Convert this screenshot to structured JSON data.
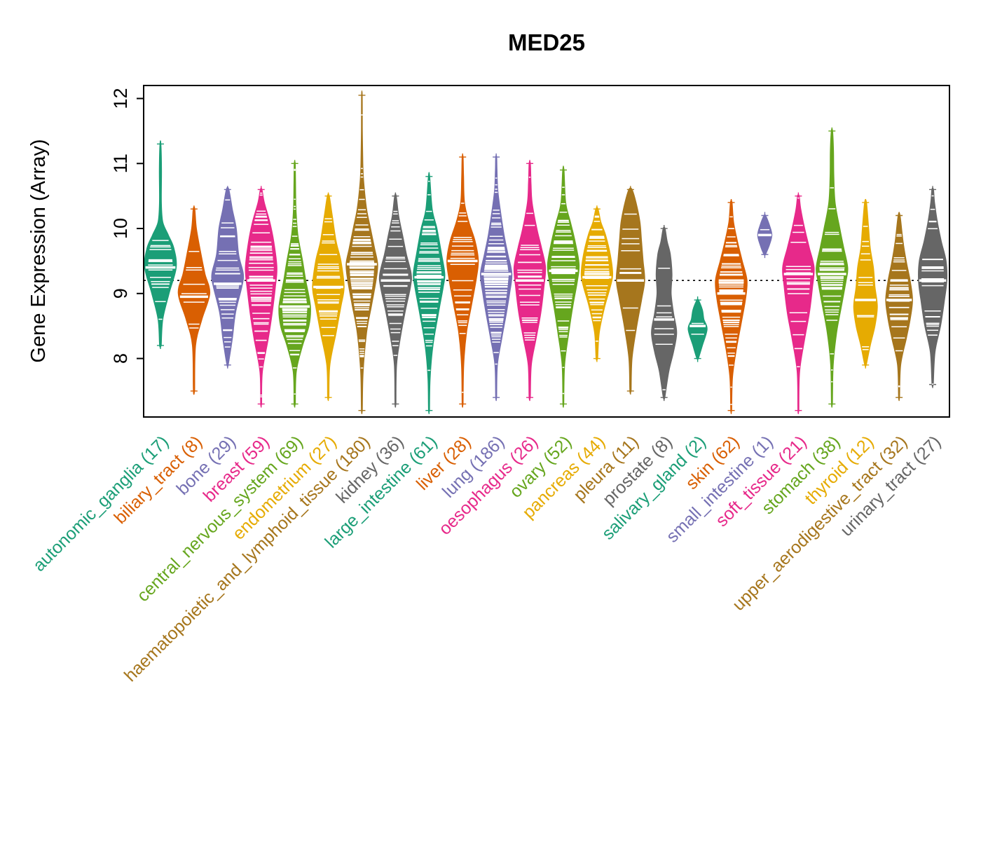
{
  "chart_data": {
    "type": "violin",
    "title": "MED25",
    "ylabel": "Gene Expression (Array)",
    "xlabel": "",
    "yticks": [
      8,
      9,
      10,
      11,
      12
    ],
    "ylim": [
      7.1,
      12.2
    ],
    "reference_line": 9.2,
    "grid": false,
    "legend": "none",
    "categories": [
      {
        "name": "autonomic_ganglia",
        "n": 17,
        "color": "#1B9E77",
        "median": 9.4,
        "profile": [
          [
            8.2,
            0.05
          ],
          [
            8.6,
            0.15
          ],
          [
            9.0,
            0.55
          ],
          [
            9.4,
            1.0
          ],
          [
            9.7,
            0.85
          ],
          [
            9.9,
            0.5
          ],
          [
            10.1,
            0.15
          ],
          [
            10.4,
            0.06
          ],
          [
            10.9,
            0.07
          ],
          [
            11.3,
            0.03
          ]
        ]
      },
      {
        "name": "biliary_tract",
        "n": 8,
        "color": "#D95F02",
        "median": 8.95,
        "profile": [
          [
            7.5,
            0.04
          ],
          [
            8.2,
            0.1
          ],
          [
            8.6,
            0.5
          ],
          [
            9.0,
            1.0
          ],
          [
            9.3,
            0.7
          ],
          [
            9.6,
            0.45
          ],
          [
            10.0,
            0.15
          ],
          [
            10.3,
            0.05
          ]
        ]
      },
      {
        "name": "bone",
        "n": 29,
        "color": "#7570B3",
        "median": 9.15,
        "profile": [
          [
            7.9,
            0.04
          ],
          [
            8.3,
            0.3
          ],
          [
            8.7,
            0.5
          ],
          [
            9.1,
            0.9
          ],
          [
            9.3,
            1.0
          ],
          [
            9.6,
            0.7
          ],
          [
            10.0,
            0.55
          ],
          [
            10.3,
            0.3
          ],
          [
            10.6,
            0.08
          ]
        ]
      },
      {
        "name": "breast",
        "n": 59,
        "color": "#E7298A",
        "median": 9.2,
        "profile": [
          [
            7.3,
            0.03
          ],
          [
            7.8,
            0.08
          ],
          [
            8.3,
            0.45
          ],
          [
            8.7,
            0.7
          ],
          [
            9.1,
            0.9
          ],
          [
            9.4,
            1.0
          ],
          [
            9.8,
            0.8
          ],
          [
            10.1,
            0.55
          ],
          [
            10.4,
            0.2
          ],
          [
            10.6,
            0.05
          ]
        ]
      },
      {
        "name": "central_nervous_system",
        "n": 69,
        "color": "#66A61E",
        "median": 8.8,
        "profile": [
          [
            7.3,
            0.04
          ],
          [
            7.8,
            0.1
          ],
          [
            8.2,
            0.5
          ],
          [
            8.5,
            0.9
          ],
          [
            8.8,
            1.0
          ],
          [
            9.2,
            0.7
          ],
          [
            9.5,
            0.5
          ],
          [
            9.9,
            0.2
          ],
          [
            10.3,
            0.08
          ],
          [
            10.7,
            0.05
          ],
          [
            11.0,
            0.03
          ]
        ]
      },
      {
        "name": "endometrium",
        "n": 27,
        "color": "#E6AB02",
        "median": 9.1,
        "profile": [
          [
            7.4,
            0.04
          ],
          [
            7.9,
            0.1
          ],
          [
            8.4,
            0.5
          ],
          [
            8.8,
            0.8
          ],
          [
            9.1,
            1.0
          ],
          [
            9.5,
            0.8
          ],
          [
            9.8,
            0.5
          ],
          [
            10.2,
            0.25
          ],
          [
            10.5,
            0.06
          ]
        ]
      },
      {
        "name": "haematopoietic_and_lymphoid_tissue",
        "n": 180,
        "color": "#A6761D",
        "median": 9.45,
        "profile": [
          [
            7.2,
            0.03
          ],
          [
            7.8,
            0.08
          ],
          [
            8.4,
            0.3
          ],
          [
            8.8,
            0.6
          ],
          [
            9.2,
            0.9
          ],
          [
            9.45,
            1.0
          ],
          [
            9.7,
            0.8
          ],
          [
            10.0,
            0.55
          ],
          [
            10.3,
            0.3
          ],
          [
            10.7,
            0.12
          ],
          [
            11.0,
            0.06
          ],
          [
            11.5,
            0.03
          ],
          [
            12.05,
            0.02
          ]
        ]
      },
      {
        "name": "kidney",
        "n": 36,
        "color": "#666666",
        "median": 9.2,
        "profile": [
          [
            7.3,
            0.03
          ],
          [
            7.9,
            0.07
          ],
          [
            8.3,
            0.3
          ],
          [
            8.7,
            0.6
          ],
          [
            9.1,
            0.95
          ],
          [
            9.3,
            1.0
          ],
          [
            9.6,
            0.7
          ],
          [
            9.9,
            0.45
          ],
          [
            10.2,
            0.2
          ],
          [
            10.5,
            0.05
          ]
        ]
      },
      {
        "name": "large_intestine",
        "n": 61,
        "color": "#1B9E77",
        "median": 9.25,
        "profile": [
          [
            7.2,
            0.03
          ],
          [
            7.7,
            0.07
          ],
          [
            8.2,
            0.25
          ],
          [
            8.7,
            0.6
          ],
          [
            9.1,
            0.9
          ],
          [
            9.3,
            1.0
          ],
          [
            9.6,
            0.8
          ],
          [
            10.0,
            0.5
          ],
          [
            10.3,
            0.2
          ],
          [
            10.8,
            0.04
          ]
        ]
      },
      {
        "name": "liver",
        "n": 28,
        "color": "#D95F02",
        "median": 9.5,
        "profile": [
          [
            7.3,
            0.03
          ],
          [
            7.9,
            0.07
          ],
          [
            8.4,
            0.25
          ],
          [
            8.8,
            0.55
          ],
          [
            9.2,
            0.85
          ],
          [
            9.5,
            1.0
          ],
          [
            9.8,
            0.8
          ],
          [
            10.1,
            0.4
          ],
          [
            10.4,
            0.12
          ],
          [
            10.8,
            0.06
          ],
          [
            11.1,
            0.03
          ]
        ]
      },
      {
        "name": "lung",
        "n": 186,
        "color": "#7570B3",
        "median": 9.3,
        "profile": [
          [
            7.4,
            0.03
          ],
          [
            7.9,
            0.08
          ],
          [
            8.3,
            0.35
          ],
          [
            8.7,
            0.65
          ],
          [
            9.0,
            0.85
          ],
          [
            9.3,
            1.0
          ],
          [
            9.6,
            0.75
          ],
          [
            9.9,
            0.5
          ],
          [
            10.3,
            0.25
          ],
          [
            10.6,
            0.1
          ],
          [
            10.9,
            0.05
          ],
          [
            11.1,
            0.03
          ]
        ]
      },
      {
        "name": "oesophagus",
        "n": 26,
        "color": "#E7298A",
        "median": 9.2,
        "profile": [
          [
            7.4,
            0.04
          ],
          [
            7.9,
            0.1
          ],
          [
            8.3,
            0.4
          ],
          [
            8.7,
            0.7
          ],
          [
            9.1,
            0.9
          ],
          [
            9.4,
            1.0
          ],
          [
            9.7,
            0.75
          ],
          [
            10.0,
            0.45
          ],
          [
            10.4,
            0.15
          ],
          [
            10.7,
            0.08
          ],
          [
            11.0,
            0.04
          ]
        ]
      },
      {
        "name": "ovary",
        "n": 52,
        "color": "#66A61E",
        "median": 9.35,
        "profile": [
          [
            7.3,
            0.03
          ],
          [
            7.9,
            0.08
          ],
          [
            8.4,
            0.35
          ],
          [
            8.8,
            0.6
          ],
          [
            9.2,
            0.9
          ],
          [
            9.45,
            1.0
          ],
          [
            9.8,
            0.75
          ],
          [
            10.1,
            0.45
          ],
          [
            10.4,
            0.15
          ],
          [
            10.9,
            0.04
          ]
        ]
      },
      {
        "name": "pancreas",
        "n": 44,
        "color": "#E6AB02",
        "median": 9.25,
        "profile": [
          [
            8.0,
            0.05
          ],
          [
            8.4,
            0.15
          ],
          [
            8.8,
            0.5
          ],
          [
            9.1,
            0.85
          ],
          [
            9.3,
            1.0
          ],
          [
            9.6,
            0.85
          ],
          [
            9.9,
            0.55
          ],
          [
            10.1,
            0.25
          ],
          [
            10.3,
            0.07
          ]
        ]
      },
      {
        "name": "pleura",
        "n": 11,
        "color": "#A6761D",
        "median": 9.2,
        "profile": [
          [
            7.5,
            0.04
          ],
          [
            8.0,
            0.1
          ],
          [
            8.5,
            0.4
          ],
          [
            8.9,
            0.7
          ],
          [
            9.2,
            0.9
          ],
          [
            9.5,
            0.8
          ],
          [
            9.8,
            0.7
          ],
          [
            10.1,
            0.6
          ],
          [
            10.4,
            0.35
          ],
          [
            10.6,
            0.1
          ]
        ]
      },
      {
        "name": "prostate",
        "n": 8,
        "color": "#666666",
        "median": 8.6,
        "profile": [
          [
            7.4,
            0.05
          ],
          [
            7.8,
            0.3
          ],
          [
            8.1,
            0.6
          ],
          [
            8.4,
            0.8
          ],
          [
            8.7,
            0.6
          ],
          [
            9.0,
            0.45
          ],
          [
            9.3,
            0.5
          ],
          [
            9.6,
            0.4
          ],
          [
            9.8,
            0.2
          ],
          [
            10.0,
            0.06
          ]
        ]
      },
      {
        "name": "salivary_gland",
        "n": 2,
        "color": "#1B9E77",
        "median": 8.5,
        "profile": [
          [
            8.0,
            0.05
          ],
          [
            8.2,
            0.3
          ],
          [
            8.45,
            0.6
          ],
          [
            8.6,
            0.4
          ],
          [
            8.75,
            0.3
          ],
          [
            8.9,
            0.05
          ]
        ]
      },
      {
        "name": "skin",
        "n": 62,
        "color": "#D95F02",
        "median": 9.0,
        "profile": [
          [
            7.2,
            0.03
          ],
          [
            7.7,
            0.08
          ],
          [
            8.1,
            0.3
          ],
          [
            8.5,
            0.6
          ],
          [
            8.9,
            0.9
          ],
          [
            9.2,
            1.0
          ],
          [
            9.5,
            0.7
          ],
          [
            9.8,
            0.4
          ],
          [
            10.1,
            0.15
          ],
          [
            10.4,
            0.05
          ]
        ]
      },
      {
        "name": "small_intestine",
        "n": 1,
        "color": "#7570B3",
        "median": 9.9,
        "profile": [
          [
            9.6,
            0.05
          ],
          [
            9.75,
            0.3
          ],
          [
            9.9,
            0.45
          ],
          [
            10.05,
            0.3
          ],
          [
            10.2,
            0.05
          ]
        ]
      },
      {
        "name": "soft_tissue",
        "n": 21,
        "color": "#E7298A",
        "median": 9.3,
        "profile": [
          [
            7.2,
            0.03
          ],
          [
            7.8,
            0.08
          ],
          [
            8.3,
            0.4
          ],
          [
            8.7,
            0.7
          ],
          [
            9.1,
            0.9
          ],
          [
            9.4,
            1.0
          ],
          [
            9.7,
            0.7
          ],
          [
            10.0,
            0.4
          ],
          [
            10.3,
            0.15
          ],
          [
            10.5,
            0.05
          ]
        ]
      },
      {
        "name": "stomach",
        "n": 38,
        "color": "#66A61E",
        "median": 9.3,
        "profile": [
          [
            7.3,
            0.03
          ],
          [
            7.9,
            0.08
          ],
          [
            8.4,
            0.3
          ],
          [
            8.8,
            0.6
          ],
          [
            9.2,
            0.9
          ],
          [
            9.4,
            1.0
          ],
          [
            9.7,
            0.75
          ],
          [
            10.0,
            0.5
          ],
          [
            10.4,
            0.2
          ],
          [
            10.8,
            0.12
          ],
          [
            11.2,
            0.1
          ],
          [
            11.5,
            0.04
          ]
        ]
      },
      {
        "name": "thyroid",
        "n": 12,
        "color": "#E6AB02",
        "median": 8.9,
        "profile": [
          [
            7.9,
            0.05
          ],
          [
            8.2,
            0.3
          ],
          [
            8.5,
            0.6
          ],
          [
            8.8,
            0.75
          ],
          [
            9.1,
            0.6
          ],
          [
            9.4,
            0.5
          ],
          [
            9.7,
            0.3
          ],
          [
            10.0,
            0.2
          ],
          [
            10.4,
            0.06
          ]
        ]
      },
      {
        "name": "upper_aerodigestive_tract",
        "n": 32,
        "color": "#A6761D",
        "median": 8.9,
        "profile": [
          [
            7.4,
            0.03
          ],
          [
            7.9,
            0.1
          ],
          [
            8.3,
            0.45
          ],
          [
            8.6,
            0.7
          ],
          [
            8.9,
            0.85
          ],
          [
            9.2,
            0.7
          ],
          [
            9.5,
            0.45
          ],
          [
            9.8,
            0.25
          ],
          [
            10.2,
            0.06
          ]
        ]
      },
      {
        "name": "urinary_tract",
        "n": 27,
        "color": "#666666",
        "median": 9.2,
        "profile": [
          [
            7.6,
            0.04
          ],
          [
            8.1,
            0.15
          ],
          [
            8.5,
            0.5
          ],
          [
            8.9,
            0.75
          ],
          [
            9.2,
            0.9
          ],
          [
            9.5,
            0.85
          ],
          [
            9.8,
            0.55
          ],
          [
            10.1,
            0.3
          ],
          [
            10.4,
            0.12
          ],
          [
            10.6,
            0.05
          ]
        ]
      }
    ]
  }
}
